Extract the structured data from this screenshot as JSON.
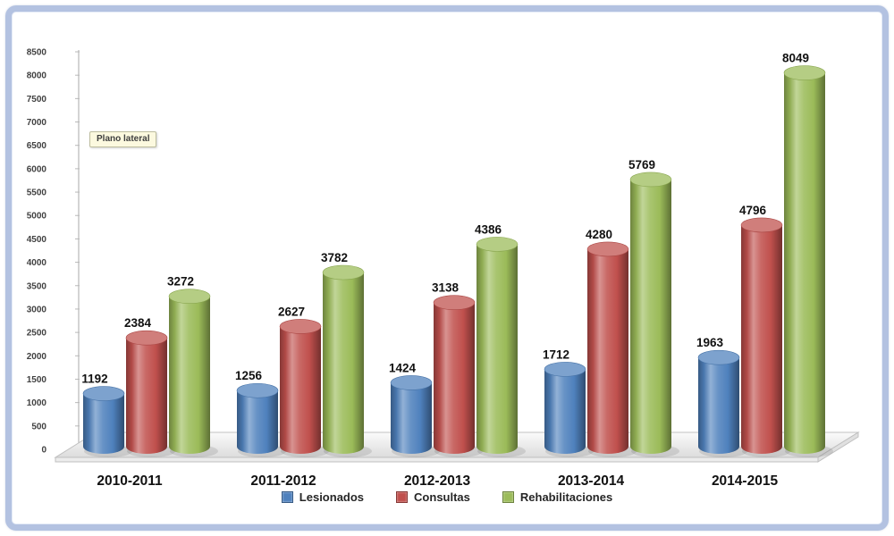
{
  "annotation": {
    "label": "Plano lateral"
  },
  "frame": {
    "border_color": "#b3c2e1",
    "background": "#ffffff"
  },
  "chart_data": {
    "type": "bar",
    "subtype": "3d-cylinder",
    "title": "",
    "xlabel": "",
    "ylabel": "",
    "categories": [
      "2010-2011",
      "2011-2012",
      "2012-2013",
      "2013-2014",
      "2014-2015"
    ],
    "series": [
      {
        "name": "Lesionados",
        "color": "#4F81BD",
        "values": [
          1192,
          1256,
          1424,
          1712,
          1963
        ]
      },
      {
        "name": "Consultas",
        "color": "#C0504D",
        "values": [
          2384,
          2627,
          3138,
          4280,
          4796
        ]
      },
      {
        "name": "Rehabilitaciones",
        "color": "#9BBB59",
        "values": [
          3272,
          3782,
          4386,
          5769,
          8049
        ]
      }
    ],
    "ylim": [
      0,
      8500
    ],
    "y_step": 500,
    "grid": false,
    "legend_position": "bottom",
    "value_labels": true
  }
}
